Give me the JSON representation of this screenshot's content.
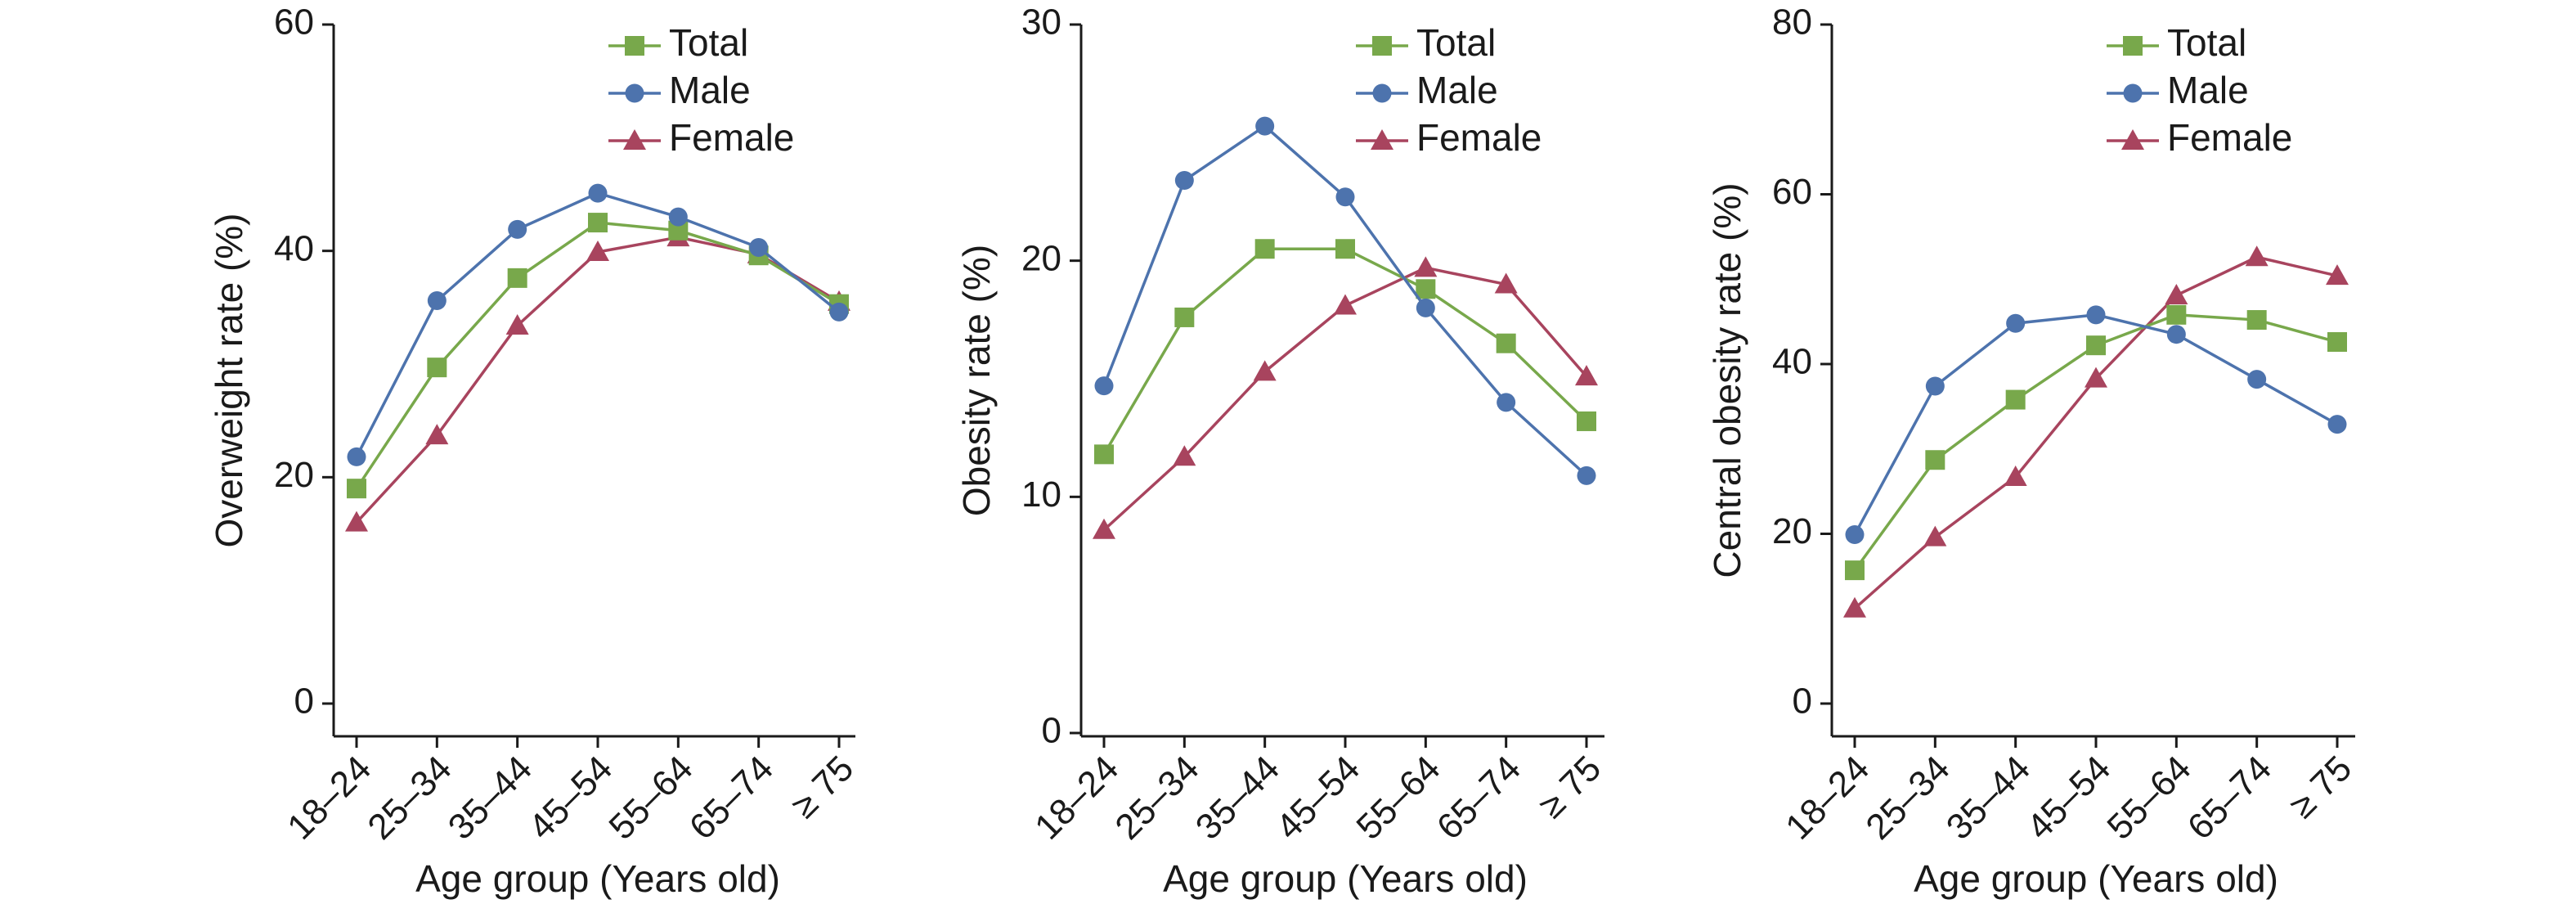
{
  "colors": {
    "total": "#78a84b",
    "male": "#4d73ad",
    "female": "#a8445e",
    "axis": "#1a1a1a"
  },
  "chart_data": [
    {
      "type": "line",
      "categories": [
        "18–24",
        "25–34",
        "35–44",
        "45–54",
        "55–64",
        "65–74",
        "≥ 75"
      ],
      "ylabel": "Overweight rate (%)",
      "xlabel": "Age group (Years old)",
      "ylim": [
        0,
        60
      ],
      "yticks": [
        "0",
        "20",
        "40",
        "60"
      ],
      "grid": false,
      "legend": "top-right",
      "series": [
        {
          "name": "Total",
          "marker": "square",
          "values": [
            19.0,
            29.7,
            37.6,
            42.5,
            41.8,
            39.6,
            35.3
          ]
        },
        {
          "name": "Male",
          "marker": "circle",
          "values": [
            21.8,
            35.6,
            41.9,
            45.1,
            43.0,
            40.3,
            34.6
          ]
        },
        {
          "name": "Female",
          "marker": "triangle",
          "values": [
            16.0,
            23.7,
            33.4,
            39.9,
            41.2,
            39.7,
            35.5
          ]
        }
      ]
    },
    {
      "type": "line",
      "categories": [
        "18–24",
        "25–34",
        "35–44",
        "45–54",
        "55–64",
        "65–74",
        "≥ 75"
      ],
      "ylabel": "Obesity rate (%)",
      "xlabel": "Age group (Years old)",
      "ylim": [
        0,
        30
      ],
      "yticks": [
        "0",
        "10",
        "20",
        "30"
      ],
      "grid": false,
      "legend": "top-right",
      "series": [
        {
          "name": "Total",
          "marker": "square",
          "values": [
            11.8,
            17.6,
            20.5,
            20.5,
            18.8,
            16.5,
            13.2
          ]
        },
        {
          "name": "Male",
          "marker": "circle",
          "values": [
            14.7,
            23.4,
            25.7,
            22.7,
            18.0,
            14.0,
            10.9
          ]
        },
        {
          "name": "Female",
          "marker": "triangle",
          "values": [
            8.6,
            11.7,
            15.3,
            18.1,
            19.7,
            19.0,
            15.1
          ]
        }
      ]
    },
    {
      "type": "line",
      "categories": [
        "18–24",
        "25–34",
        "35–44",
        "45–54",
        "55–64",
        "65–74",
        "≥ 75"
      ],
      "ylabel": "Central obesity rate (%)",
      "xlabel": "Age group (Years old)",
      "ylim": [
        0,
        80
      ],
      "yticks": [
        "0",
        "20",
        "40",
        "60",
        "80"
      ],
      "grid": false,
      "legend": "top-right",
      "series": [
        {
          "name": "Total",
          "marker": "square",
          "values": [
            15.7,
            28.7,
            35.8,
            42.2,
            45.8,
            45.2,
            42.6
          ]
        },
        {
          "name": "Male",
          "marker": "circle",
          "values": [
            19.9,
            37.4,
            44.8,
            45.8,
            43.5,
            38.2,
            32.9
          ]
        },
        {
          "name": "Female",
          "marker": "triangle",
          "values": [
            11.2,
            19.6,
            26.7,
            38.3,
            48.1,
            52.6,
            50.4
          ]
        }
      ]
    }
  ]
}
